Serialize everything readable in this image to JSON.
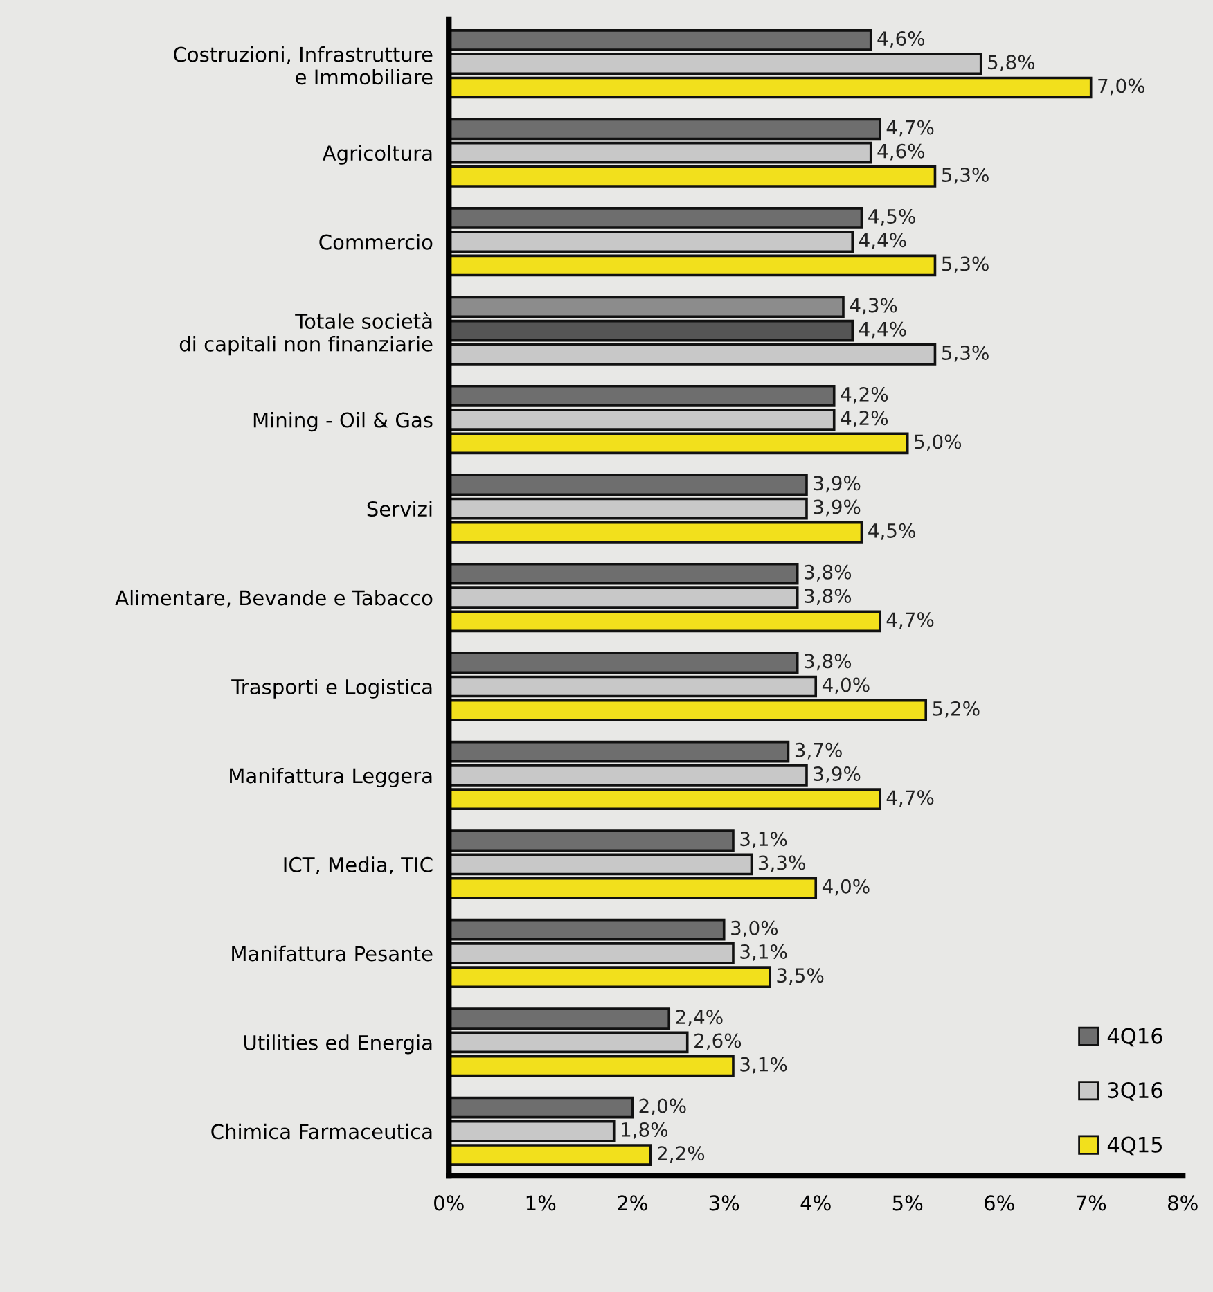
{
  "chart_data": {
    "type": "bar",
    "orientation": "horizontal",
    "legend": "bottom right",
    "grid": false,
    "categories": [
      "Costruzioni, Infrastrutture\ne Immobiliare",
      "Agricoltura",
      "Commercio",
      "Totale società\ndi capitali non finanziarie",
      "Mining - Oil & Gas",
      "Servizi",
      "Alimentare, Bevande e Tabacco",
      "Trasporti e Logistica",
      "Manifattura Leggera",
      "ICT, Media, TIC",
      "Manifattura Pesante",
      "Utilities ed Energia",
      "Chimica Farmaceutica"
    ],
    "series": [
      {
        "name": "4Q16",
        "color": "#6e6e6e",
        "colors": [
          "#6e6e6e",
          "#6e6e6e",
          "#6e6e6e",
          "#8c8c8c",
          "#6e6e6e",
          "#6e6e6e",
          "#6e6e6e",
          "#6e6e6e",
          "#6e6e6e",
          "#6e6e6e",
          "#6e6e6e",
          "#6e6e6e",
          "#6e6e6e"
        ],
        "values": [
          4.6,
          4.7,
          4.5,
          4.3,
          4.2,
          3.9,
          3.8,
          3.8,
          3.7,
          3.1,
          3.0,
          2.4,
          2.0
        ],
        "value_labels": [
          "4,6%",
          "4,7%",
          "4,5%",
          "4,3%",
          "4,2%",
          "3,9%",
          "3,8%",
          "3,8%",
          "3,7%",
          "3,1%",
          "3,0%",
          "2,4%",
          "2,0%"
        ]
      },
      {
        "name": "3Q16",
        "color": "#c8c8c8",
        "colors": [
          "#c8c8c8",
          "#c8c8c8",
          "#c8c8c8",
          "#555555",
          "#c8c8c8",
          "#c8c8c8",
          "#c8c8c8",
          "#c8c8c8",
          "#c8c8c8",
          "#c8c8c8",
          "#c8c8c8",
          "#c8c8c8",
          "#c8c8c8"
        ],
        "values": [
          5.8,
          4.6,
          4.4,
          4.4,
          4.2,
          3.9,
          3.8,
          4.0,
          3.9,
          3.3,
          3.1,
          2.6,
          1.8
        ],
        "value_labels": [
          "5,8%",
          "4,6%",
          "4,4%",
          "4,4%",
          "4,2%",
          "3,9%",
          "3,8%",
          "4,0%",
          "3,9%",
          "3,3%",
          "3,1%",
          "2,6%",
          "1,8%"
        ]
      },
      {
        "name": "4Q15",
        "color": "#f2e01c",
        "colors": [
          "#f2e01c",
          "#f2e01c",
          "#f2e01c",
          "#c8c8c8",
          "#f2e01c",
          "#f2e01c",
          "#f2e01c",
          "#f2e01c",
          "#f2e01c",
          "#f2e01c",
          "#f2e01c",
          "#f2e01c",
          "#f2e01c"
        ],
        "values": [
          7.0,
          5.3,
          5.3,
          5.3,
          5.0,
          4.5,
          4.7,
          5.2,
          4.7,
          4.0,
          3.5,
          3.1,
          2.2
        ],
        "value_labels": [
          "7,0%",
          "5,3%",
          "5,3%",
          "5,3%",
          "5,0%",
          "4,5%",
          "4,7%",
          "5,2%",
          "4,7%",
          "4,0%",
          "3,5%",
          "3,1%",
          "2,2%"
        ]
      }
    ],
    "xlim": [
      0,
      8
    ],
    "xticks": [
      {
        "value": 0,
        "label": "0%"
      },
      {
        "value": 1,
        "label": "1%"
      },
      {
        "value": 2,
        "label": "2%"
      },
      {
        "value": 3,
        "label": "3%"
      },
      {
        "value": 4,
        "label": "4%"
      },
      {
        "value": 5,
        "label": "5%"
      },
      {
        "value": 6,
        "label": "6%"
      },
      {
        "value": 7,
        "label": "7%"
      },
      {
        "value": 8,
        "label": "8%"
      }
    ]
  }
}
